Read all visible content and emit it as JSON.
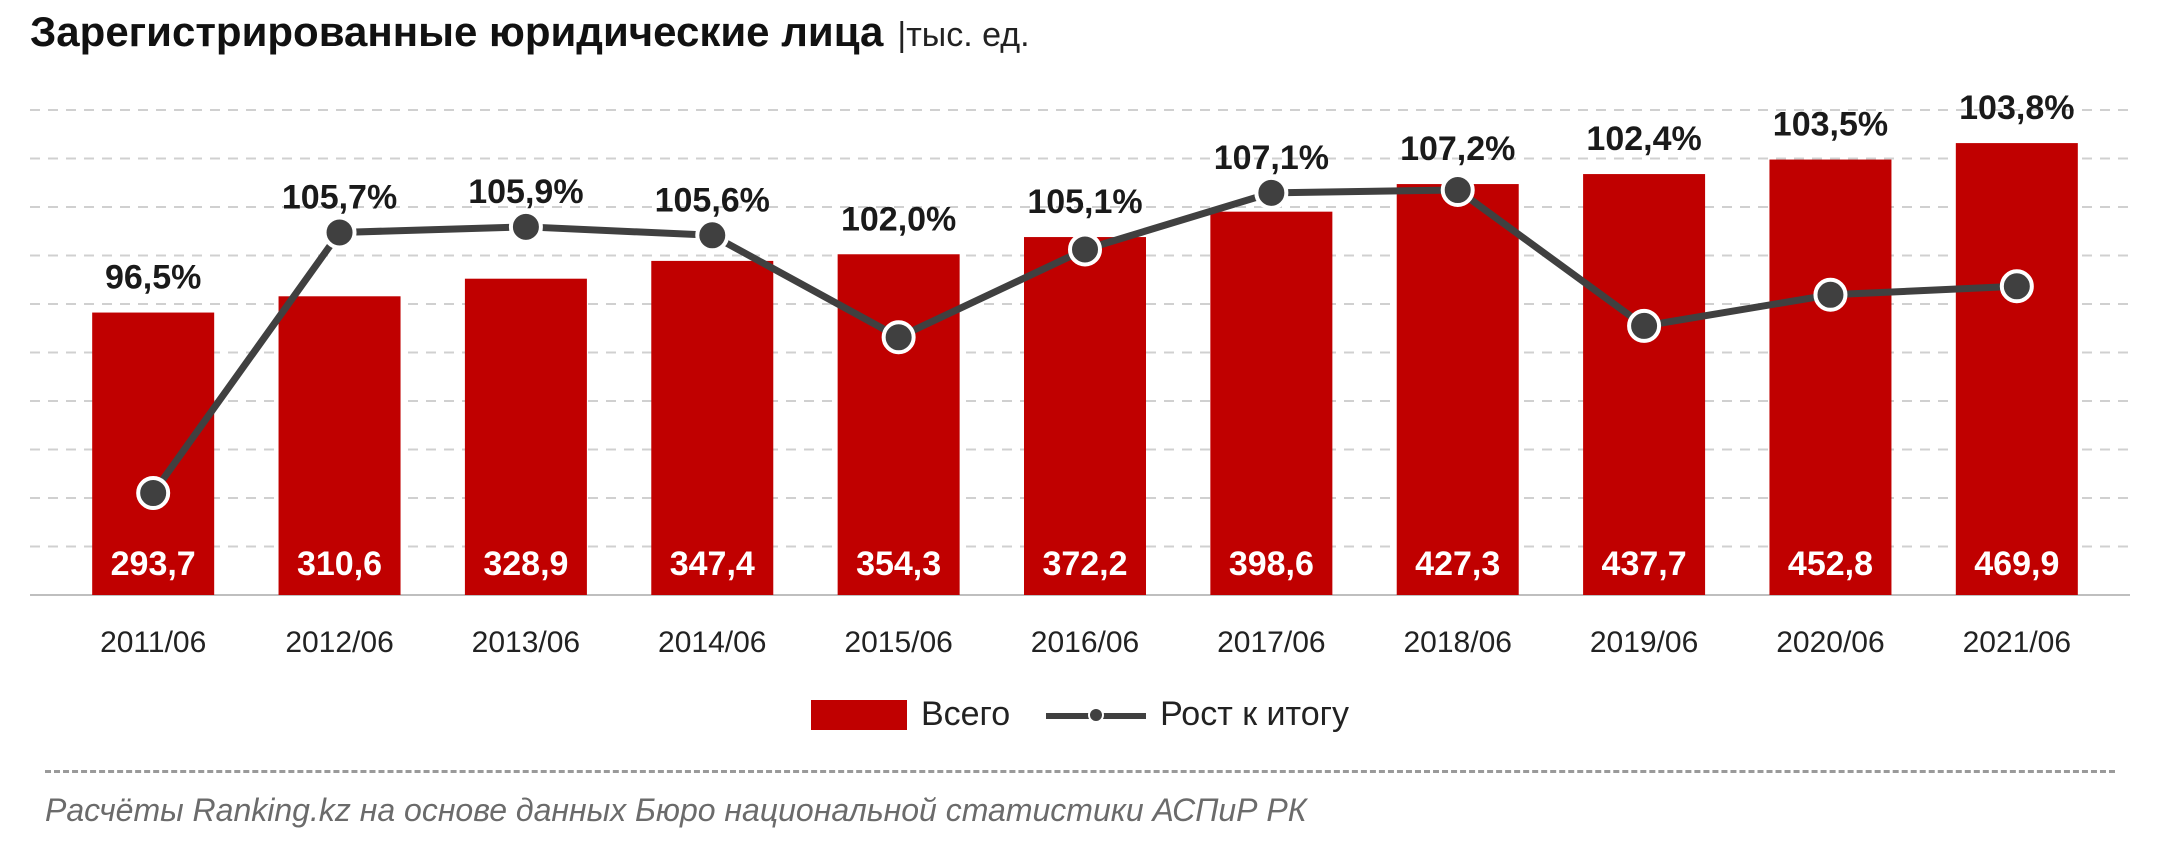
{
  "title": "Зарегистрированные юридические лица",
  "unit": "|тыс. ед.",
  "legend": {
    "bar_label": "Всего",
    "line_label": "Рост к итогу"
  },
  "source": "Расчёты Ranking.kz на основе данных Бюро национальной статистики АСПиР РК",
  "colors": {
    "bar": "#c00000",
    "line": "#404040",
    "grid": "#d0d0d0",
    "bar_label": "#ffffff"
  },
  "chart_data": {
    "type": "bar",
    "categories": [
      "2011/06",
      "2012/06",
      "2013/06",
      "2014/06",
      "2015/06",
      "2016/06",
      "2017/06",
      "2018/06",
      "2019/06",
      "2020/06",
      "2021/06"
    ],
    "series": [
      {
        "name": "Всего",
        "type": "bar",
        "values": [
          293.7,
          310.6,
          328.9,
          347.4,
          354.3,
          372.2,
          398.6,
          427.3,
          437.7,
          452.8,
          469.9
        ],
        "labels": [
          "293,7",
          "310,6",
          "328,9",
          "347,4",
          "354,3",
          "372,2",
          "398,6",
          "427,3",
          "437,7",
          "452,8",
          "469,9"
        ]
      },
      {
        "name": "Рост к итогу",
        "type": "line",
        "values": [
          96.5,
          105.7,
          105.9,
          105.6,
          102.0,
          105.1,
          107.1,
          107.2,
          102.4,
          103.5,
          103.8
        ],
        "labels": [
          "96,5%",
          "105,7%",
          "105,9%",
          "105,6%",
          "102,0%",
          "105,1%",
          "107,1%",
          "107,2%",
          "102,4%",
          "103,5%",
          "103,8%"
        ]
      }
    ],
    "grid": true,
    "legend_position": "bottom"
  }
}
